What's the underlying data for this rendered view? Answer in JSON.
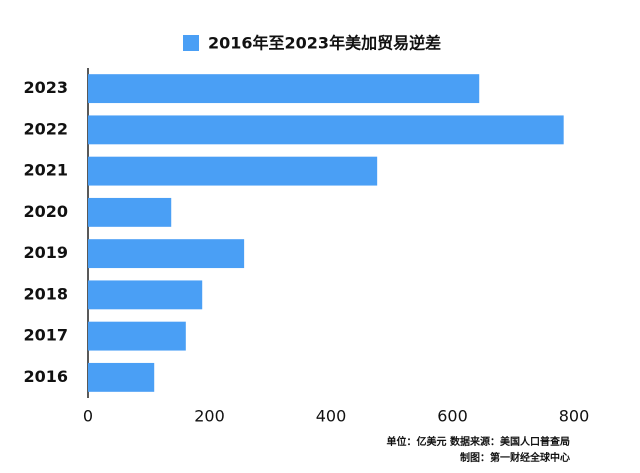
{
  "chart_data": {
    "type": "bar",
    "orientation": "horizontal",
    "categories": [
      "2023",
      "2022",
      "2021",
      "2020",
      "2019",
      "2018",
      "2017",
      "2016"
    ],
    "series": [
      {
        "name": "2016年至2023年美加贸易逆差",
        "color": "#4a9ff5",
        "values": [
          644,
          783,
          476,
          137,
          257,
          188,
          161,
          109
        ]
      }
    ],
    "xlim": [
      0,
      800
    ],
    "xticks": [
      0,
      200,
      400,
      600,
      800
    ],
    "grid": false,
    "legend": "top",
    "notes": [
      "单位：亿美元 数据来源：美国人口普查局",
      "制图：第一财经全球中心"
    ]
  }
}
